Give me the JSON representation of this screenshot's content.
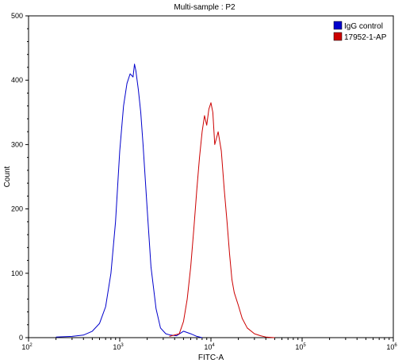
{
  "chart_data": {
    "type": "line",
    "title": "Multi-sample : P2",
    "xlabel": "FITC-A",
    "ylabel": "Count",
    "x_scale": "log",
    "xlim": [
      100,
      1000000
    ],
    "ylim": [
      0,
      500
    ],
    "x_ticks": [
      {
        "value": 100,
        "base": "10",
        "exp": "2"
      },
      {
        "value": 1000,
        "base": "10",
        "exp": "3"
      },
      {
        "value": 10000,
        "base": "10",
        "exp": "4"
      },
      {
        "value": 100000,
        "base": "10",
        "exp": "5"
      },
      {
        "value": 1000000,
        "base": "10",
        "exp": "6"
      }
    ],
    "y_ticks": [
      0,
      100,
      200,
      300,
      400,
      500
    ],
    "grid": false,
    "legend_position": "top-right",
    "series": [
      {
        "name": "IgG control",
        "color": "#0000cc",
        "x": [
          200,
          300,
          400,
          500,
          600,
          700,
          800,
          900,
          1000,
          1100,
          1200,
          1300,
          1400,
          1450,
          1500,
          1600,
          1700,
          1800,
          2000,
          2200,
          2500,
          2800,
          3200,
          3600,
          4200,
          5000,
          6000,
          7000,
          8000
        ],
        "y": [
          1,
          2,
          4,
          10,
          22,
          48,
          100,
          180,
          290,
          360,
          395,
          410,
          405,
          425,
          415,
          385,
          350,
          300,
          200,
          110,
          45,
          15,
          6,
          4,
          3,
          10,
          6,
          2,
          0
        ]
      },
      {
        "name": "17952-1-AP",
        "color": "#cc0000",
        "x": [
          3500,
          4500,
          5000,
          5500,
          6000,
          6500,
          7000,
          7500,
          8000,
          8500,
          9000,
          9500,
          10000,
          10500,
          11000,
          11500,
          12000,
          13000,
          14000,
          15000,
          16000,
          17000,
          18000,
          20000,
          22000,
          25000,
          30000,
          35000,
          40000,
          50000
        ],
        "y": [
          2,
          6,
          25,
          60,
          110,
          170,
          230,
          280,
          320,
          345,
          330,
          355,
          365,
          350,
          300,
          310,
          320,
          290,
          230,
          180,
          130,
          90,
          70,
          50,
          30,
          15,
          6,
          3,
          1,
          0
        ]
      }
    ]
  }
}
